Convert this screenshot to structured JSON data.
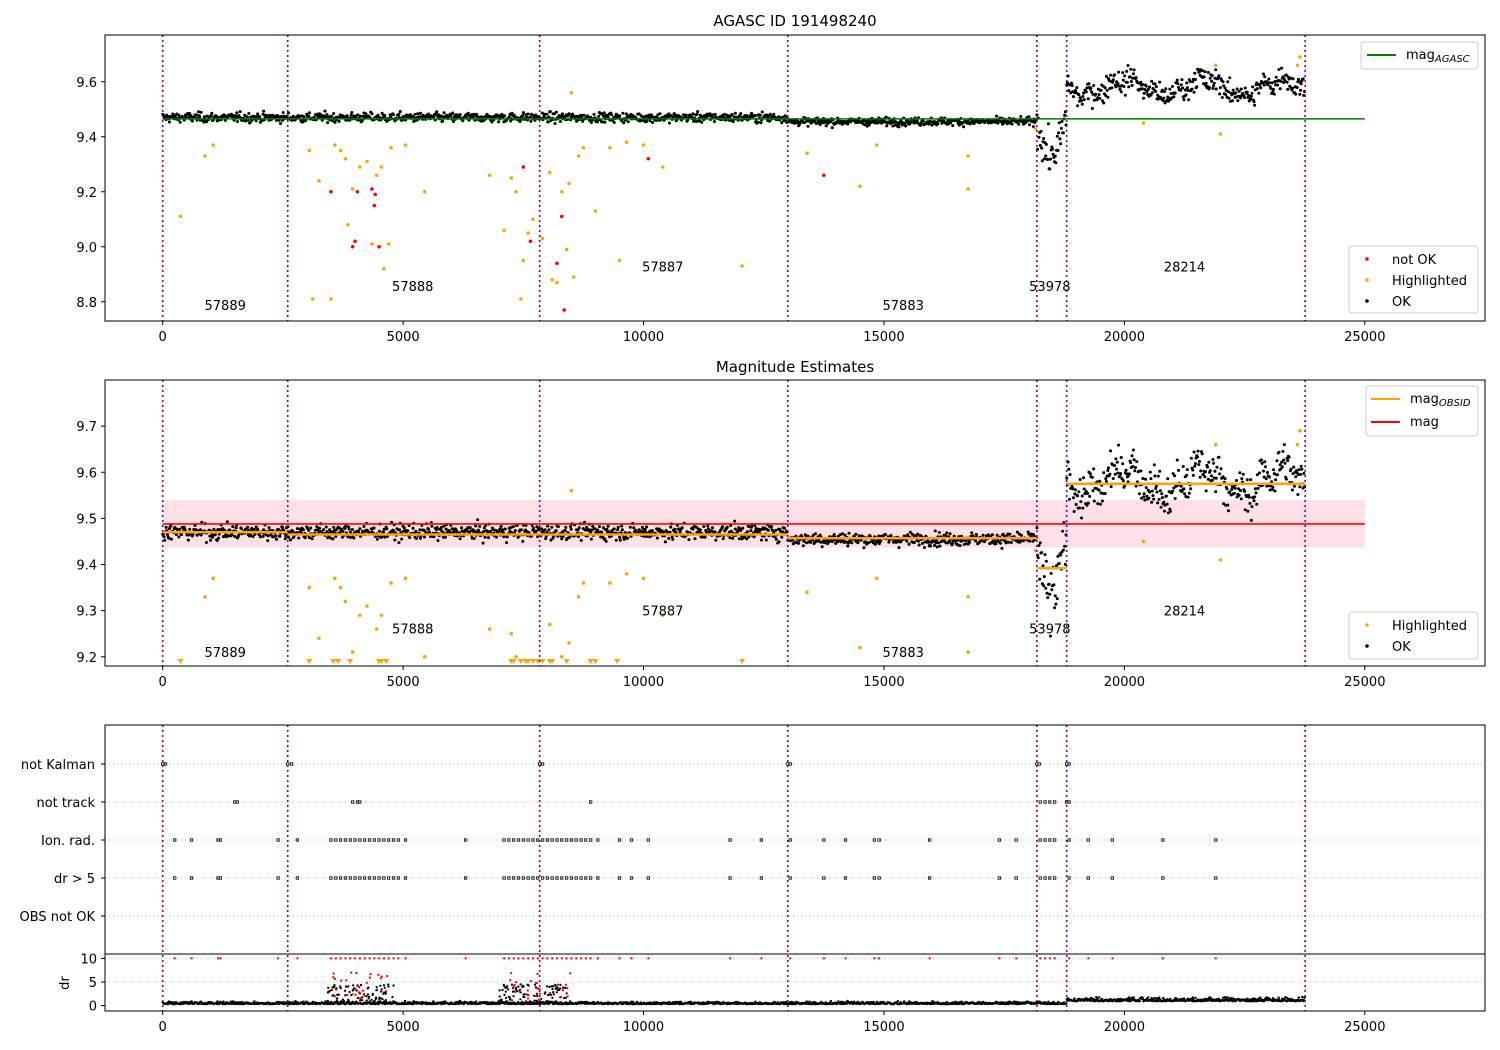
{
  "chart_data": [
    {
      "type": "scatter",
      "title": "AGASC ID 191498240",
      "xlim": [
        -1200,
        27500
      ],
      "ylim": [
        8.73,
        9.77
      ],
      "xticks": [
        0,
        5000,
        10000,
        15000,
        20000,
        25000
      ],
      "yticks": [
        8.8,
        9.0,
        9.2,
        9.4,
        9.6
      ],
      "vlines": [
        0,
        2600,
        7840,
        13000,
        18180,
        18800,
        23760
      ],
      "segment_labels": [
        {
          "text": "57889",
          "x": 1300,
          "y": 8.77
        },
        {
          "text": "57888",
          "x": 5200,
          "y": 8.84
        },
        {
          "text": "57887",
          "x": 10400,
          "y": 8.91
        },
        {
          "text": "57883",
          "x": 15400,
          "y": 8.77
        },
        {
          "text": "53978",
          "x": 18450,
          "y": 8.84
        },
        {
          "text": "28214",
          "x": 21250,
          "y": 8.91
        }
      ],
      "hline": {
        "name": "mag_AGASC",
        "y": 9.465,
        "xmin": 0,
        "xmax": 25000,
        "color": "#008000"
      },
      "series": [
        {
          "name": "not OK",
          "color": "#ff0000"
        },
        {
          "name": "Highlighted",
          "color": "#ffa500"
        },
        {
          "name": "OK",
          "color": "#000000"
        }
      ],
      "segment_levels": [
        {
          "x0": 0,
          "x1": 13000,
          "level": 9.47,
          "noise": 0.012
        },
        {
          "x0": 13000,
          "x1": 18180,
          "level": 9.455,
          "noise": 0.01
        },
        {
          "x0": 18180,
          "x1": 18800,
          "level": 9.39,
          "noise": 0.05
        },
        {
          "x0": 18800,
          "x1": 23760,
          "level": 9.58,
          "noise": 0.03
        }
      ],
      "highlighted_points": [
        [
          370,
          9.11
        ],
        [
          880,
          9.33
        ],
        [
          1050,
          9.37
        ],
        [
          3050,
          9.35
        ],
        [
          3120,
          8.81
        ],
        [
          3250,
          9.24
        ],
        [
          3500,
          8.81
        ],
        [
          3580,
          9.37
        ],
        [
          3700,
          9.35
        ],
        [
          3800,
          9.32
        ],
        [
          3850,
          9.08
        ],
        [
          3950,
          9.21
        ],
        [
          4100,
          9.29
        ],
        [
          4250,
          9.31
        ],
        [
          4350,
          9.01
        ],
        [
          4450,
          9.26
        ],
        [
          4550,
          9.29
        ],
        [
          4600,
          8.92
        ],
        [
          4700,
          9.01
        ],
        [
          4750,
          9.36
        ],
        [
          5050,
          9.37
        ],
        [
          5450,
          9.2
        ],
        [
          6800,
          9.26
        ],
        [
          7100,
          9.06
        ],
        [
          7250,
          9.25
        ],
        [
          7350,
          9.2
        ],
        [
          7450,
          8.81
        ],
        [
          7500,
          8.95
        ],
        [
          7600,
          9.05
        ],
        [
          7700,
          9.1
        ],
        [
          7900,
          9.03
        ],
        [
          8050,
          9.27
        ],
        [
          8100,
          8.88
        ],
        [
          8200,
          8.87
        ],
        [
          8300,
          9.2
        ],
        [
          8400,
          8.99
        ],
        [
          8450,
          9.23
        ],
        [
          8500,
          9.56
        ],
        [
          8550,
          8.89
        ],
        [
          8650,
          9.33
        ],
        [
          8750,
          9.36
        ],
        [
          9000,
          9.13
        ],
        [
          9300,
          9.36
        ],
        [
          9500,
          8.95
        ],
        [
          9650,
          9.38
        ],
        [
          10000,
          9.37
        ],
        [
          10400,
          9.29
        ],
        [
          12050,
          8.93
        ],
        [
          13400,
          9.34
        ],
        [
          14500,
          9.22
        ],
        [
          14850,
          9.37
        ],
        [
          16750,
          9.21
        ],
        [
          16750,
          9.33
        ],
        [
          18150,
          9.43
        ],
        [
          20400,
          9.45
        ],
        [
          21900,
          9.66
        ],
        [
          22000,
          9.41
        ],
        [
          23600,
          9.66
        ],
        [
          23650,
          9.69
        ]
      ],
      "not_ok_points": [
        [
          3500,
          9.2
        ],
        [
          3950,
          9.0
        ],
        [
          4000,
          9.02
        ],
        [
          4050,
          9.2
        ],
        [
          4350,
          9.21
        ],
        [
          4400,
          9.15
        ],
        [
          4420,
          9.19
        ],
        [
          4500,
          9.0
        ],
        [
          7500,
          9.29
        ],
        [
          7650,
          9.02
        ],
        [
          8200,
          8.94
        ],
        [
          8300,
          9.11
        ],
        [
          8350,
          8.77
        ],
        [
          10100,
          9.32
        ],
        [
          13750,
          9.26
        ]
      ]
    },
    {
      "type": "scatter",
      "title": "Magnitude Estimates",
      "xlim": [
        -1200,
        27500
      ],
      "ylim": [
        9.18,
        9.8
      ],
      "xticks": [
        0,
        5000,
        10000,
        15000,
        20000,
        25000
      ],
      "yticks": [
        9.2,
        9.3,
        9.4,
        9.5,
        9.6,
        9.7
      ],
      "vlines": [
        0,
        2600,
        7840,
        13000,
        18180,
        18800,
        23760
      ],
      "segment_labels": [
        {
          "text": "57889",
          "x": 1300,
          "y": 9.2
        },
        {
          "text": "57888",
          "x": 5200,
          "y": 9.25
        },
        {
          "text": "57887",
          "x": 10400,
          "y": 9.29
        },
        {
          "text": "57883",
          "x": 15400,
          "y": 9.2
        },
        {
          "text": "53978",
          "x": 18450,
          "y": 9.25
        },
        {
          "text": "28214",
          "x": 21250,
          "y": 9.29
        }
      ],
      "mag_line": {
        "name": "mag",
        "y": 9.488,
        "xmin": 0,
        "xmax": 25000,
        "color": "#ff0000"
      },
      "mag_band": [
        9.437,
        9.54
      ],
      "obsid_levels": [
        {
          "x0": 0,
          "x1": 2600,
          "level": 9.47
        },
        {
          "x0": 2600,
          "x1": 7840,
          "level": 9.465
        },
        {
          "x0": 7840,
          "x1": 13000,
          "level": 9.465
        },
        {
          "x0": 13000,
          "x1": 18180,
          "level": 9.457
        },
        {
          "x0": 18180,
          "x1": 18800,
          "level": 9.392
        },
        {
          "x0": 18800,
          "x1": 23760,
          "level": 9.575
        }
      ],
      "series": [
        {
          "name": "Highlighted",
          "color": "#ffa500"
        },
        {
          "name": "OK",
          "color": "#000000"
        }
      ],
      "line_legend": [
        {
          "label": "mag",
          "sub": "OBSID",
          "color": "#ffa500"
        },
        {
          "label": "mag",
          "sub": "",
          "color": "#ff0000"
        }
      ],
      "below_axis_markers": [
        370,
        3050,
        3550,
        3650,
        3900,
        4500,
        4550,
        4650,
        7250,
        7300,
        7450,
        7550,
        7600,
        7700,
        7800,
        7900,
        8050,
        8100,
        8400,
        8900,
        9000,
        9450,
        12050
      ]
    },
    {
      "type": "scatter",
      "title": "",
      "xlim": [
        -1200,
        27500
      ],
      "xticks": [
        0,
        5000,
        10000,
        15000,
        20000,
        25000
      ],
      "vlines": [
        0,
        2600,
        7840,
        13000,
        18180,
        18800,
        23760
      ],
      "flag_rows": [
        "not Kalman",
        "not track",
        "Ion. rad.",
        "dr > 5",
        "OBS not OK"
      ],
      "flag_points": {
        "not Kalman": [
          0,
          60,
          2600,
          2680,
          7840,
          7900,
          13000,
          13050,
          18180,
          18230,
          18800,
          18850
        ],
        "not track": [
          1500,
          1550,
          3950,
          4050,
          4100,
          8900,
          18250,
          18350,
          18450,
          18550,
          18800,
          18850
        ],
        "Ion. rad.": [
          250,
          600,
          1150,
          1200,
          2400,
          2800,
          3500,
          3600,
          3700,
          3800,
          3900,
          4000,
          4100,
          4200,
          4300,
          4400,
          4500,
          4600,
          4700,
          4800,
          4900,
          5050,
          6300,
          7100,
          7200,
          7300,
          7400,
          7500,
          7600,
          7700,
          7800,
          7900,
          8000,
          8100,
          8200,
          8300,
          8400,
          8500,
          8600,
          8700,
          8800,
          8900,
          9050,
          9500,
          9750,
          10100,
          11800,
          12450,
          13050,
          13750,
          14200,
          14800,
          14900,
          15950,
          17400,
          17750,
          18250,
          18350,
          18450,
          18550,
          18850,
          19250,
          19750,
          20800,
          21900
        ],
        "dr > 5": [
          250,
          600,
          1150,
          1200,
          2400,
          2800,
          3500,
          3600,
          3700,
          3800,
          3900,
          4000,
          4100,
          4200,
          4300,
          4400,
          4500,
          4600,
          4700,
          4800,
          4900,
          5050,
          6300,
          7100,
          7200,
          7300,
          7400,
          7500,
          7600,
          7700,
          7800,
          7900,
          8000,
          8100,
          8200,
          8300,
          8400,
          8500,
          8600,
          8700,
          8800,
          8900,
          9050,
          9500,
          9750,
          10100,
          11800,
          12450,
          13050,
          13750,
          14200,
          14800,
          14900,
          15950,
          17400,
          17750,
          18250,
          18350,
          18450,
          18550,
          18850,
          19250,
          19750,
          20800,
          21900
        ],
        "OBS not OK": []
      },
      "dr_ylabel": "dr",
      "dr_yticks": [
        0,
        5,
        10
      ],
      "dr_ylim": [
        -0.3,
        10.3
      ]
    }
  ]
}
